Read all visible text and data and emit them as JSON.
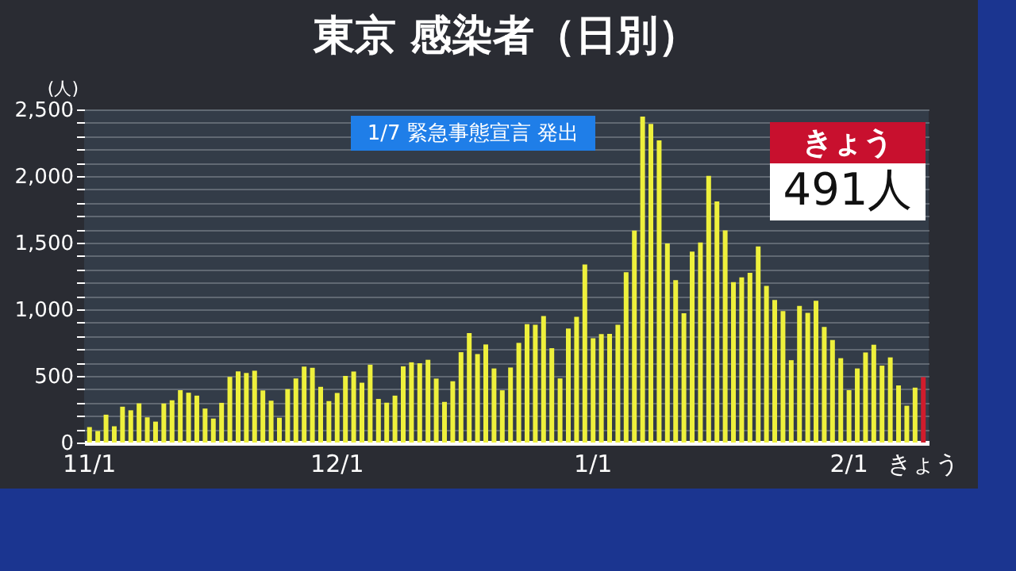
{
  "chart_data": {
    "type": "bar",
    "title": "東京 感染者（日別）",
    "ylabel": "(人)",
    "annotations": [
      "1/7 緊急事態宣言 発出",
      "きょう 491人"
    ],
    "categories": [
      "11/1",
      null,
      null,
      null,
      null,
      null,
      null,
      null,
      null,
      null,
      null,
      null,
      null,
      null,
      null,
      null,
      null,
      null,
      null,
      null,
      null,
      null,
      null,
      null,
      null,
      null,
      null,
      null,
      null,
      null,
      "12/1",
      null,
      null,
      null,
      null,
      null,
      null,
      null,
      null,
      null,
      null,
      null,
      null,
      null,
      null,
      null,
      null,
      null,
      null,
      null,
      null,
      null,
      null,
      null,
      null,
      null,
      null,
      null,
      null,
      null,
      null,
      "1/1",
      null,
      null,
      null,
      null,
      null,
      null,
      null,
      null,
      null,
      null,
      null,
      null,
      null,
      null,
      null,
      null,
      null,
      null,
      null,
      null,
      null,
      null,
      null,
      null,
      null,
      null,
      null,
      null,
      null,
      null,
      "2/1",
      null,
      null,
      null,
      null,
      null,
      null,
      null,
      null,
      "きょう"
    ],
    "values": [
      116,
      87,
      209,
      122,
      269,
      242,
      294,
      189,
      157,
      293,
      317,
      393,
      374,
      352,
      255,
      180,
      298,
      493,
      534,
      522,
      539,
      391,
      314,
      186,
      401,
      481,
      570,
      561,
      418,
      311,
      372,
      500,
      533,
      449,
      584,
      327,
      299,
      352,
      572,
      602,
      595,
      621,
      480,
      305,
      460,
      678,
      822,
      664,
      736,
      556,
      392,
      563,
      748,
      888,
      884,
      949,
      708,
      481,
      856,
      944,
      1337,
      783,
      814,
      816,
      884,
      1278,
      1591,
      2447,
      2392,
      2268,
      1494,
      1219,
      970,
      1433,
      1502,
      2001,
      1809,
      1592,
      1204,
      1240,
      1274,
      1471,
      1175,
      1070,
      986,
      618,
      1026,
      973,
      1064,
      868,
      769,
      633,
      393,
      556,
      676,
      734,
      577,
      639,
      429,
      276,
      412,
      491
    ],
    "colors": [
      "#eef03c",
      "#eef03c",
      "#eef03c",
      "#eef03c",
      "#eef03c",
      "#eef03c",
      "#eef03c",
      "#eef03c",
      "#eef03c",
      "#eef03c",
      "#eef03c",
      "#eef03c",
      "#eef03c",
      "#eef03c",
      "#eef03c",
      "#eef03c",
      "#eef03c",
      "#eef03c",
      "#eef03c",
      "#eef03c",
      "#eef03c",
      "#eef03c",
      "#eef03c",
      "#eef03c",
      "#eef03c",
      "#eef03c",
      "#eef03c",
      "#eef03c",
      "#eef03c",
      "#eef03c",
      "#eef03c",
      "#eef03c",
      "#eef03c",
      "#eef03c",
      "#eef03c",
      "#eef03c",
      "#eef03c",
      "#eef03c",
      "#eef03c",
      "#eef03c",
      "#eef03c",
      "#eef03c",
      "#eef03c",
      "#eef03c",
      "#eef03c",
      "#eef03c",
      "#eef03c",
      "#eef03c",
      "#eef03c",
      "#eef03c",
      "#eef03c",
      "#eef03c",
      "#eef03c",
      "#eef03c",
      "#eef03c",
      "#eef03c",
      "#eef03c",
      "#eef03c",
      "#eef03c",
      "#eef03c",
      "#eef03c",
      "#eef03c",
      "#eef03c",
      "#eef03c",
      "#eef03c",
      "#eef03c",
      "#eef03c",
      "#eef03c",
      "#eef03c",
      "#eef03c",
      "#eef03c",
      "#eef03c",
      "#eef03c",
      "#eef03c",
      "#eef03c",
      "#eef03c",
      "#eef03c",
      "#eef03c",
      "#eef03c",
      "#eef03c",
      "#eef03c",
      "#eef03c",
      "#eef03c",
      "#eef03c",
      "#eef03c",
      "#eef03c",
      "#eef03c",
      "#eef03c",
      "#eef03c",
      "#eef03c",
      "#eef03c",
      "#eef03c",
      "#eef03c",
      "#eef03c",
      "#eef03c",
      "#eef03c",
      "#eef03c",
      "#eef03c",
      "#eef03c",
      "#eef03c",
      "#eef03c",
      "#d01c2c"
    ],
    "ylim": [
      0,
      2500
    ],
    "yticks": [
      {
        "value": 0,
        "label": "0"
      },
      {
        "value": 100,
        "label": null
      },
      {
        "value": 200,
        "label": null
      },
      {
        "value": 300,
        "label": null
      },
      {
        "value": 400,
        "label": null
      },
      {
        "value": 500,
        "label": "500"
      },
      {
        "value": 600,
        "label": null
      },
      {
        "value": 700,
        "label": null
      },
      {
        "value": 800,
        "label": null
      },
      {
        "value": 900,
        "label": null
      },
      {
        "value": 1000,
        "label": "1,000"
      },
      {
        "value": 1100,
        "label": null
      },
      {
        "value": 1200,
        "label": null
      },
      {
        "value": 1300,
        "label": null
      },
      {
        "value": 1400,
        "label": null
      },
      {
        "value": 1500,
        "label": "1,500"
      },
      {
        "value": 1600,
        "label": null
      },
      {
        "value": 1700,
        "label": null
      },
      {
        "value": 1800,
        "label": null
      },
      {
        "value": 1900,
        "label": null
      },
      {
        "value": 2000,
        "label": "2,000"
      },
      {
        "value": 2100,
        "label": null
      },
      {
        "value": 2200,
        "label": null
      },
      {
        "value": 2300,
        "label": null
      },
      {
        "value": 2400,
        "label": null
      },
      {
        "value": 2500,
        "label": "2,500"
      }
    ],
    "grid": true
  }
}
